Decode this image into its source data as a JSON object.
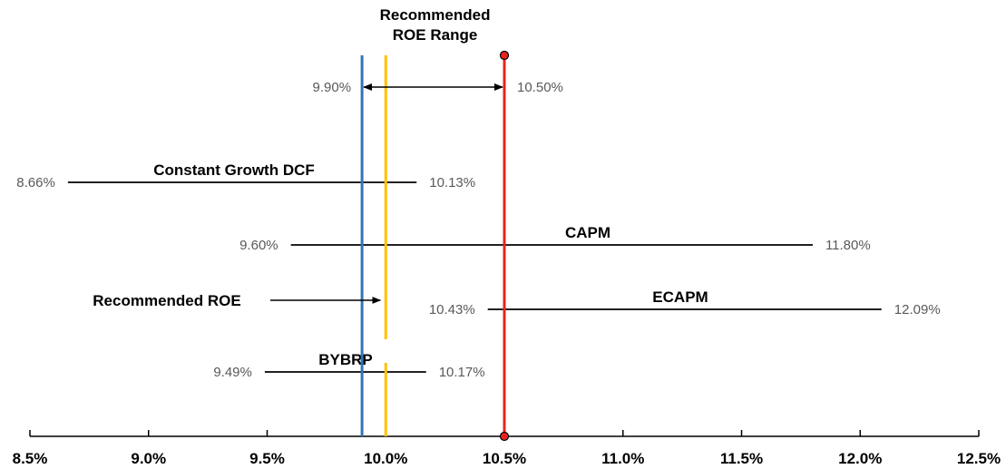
{
  "chart_data": {
    "type": "range",
    "title": "",
    "xlabel": "",
    "ylabel": "",
    "xlim": [
      8.5,
      12.5
    ],
    "x_ticks": [
      8.5,
      9.0,
      9.5,
      10.0,
      10.5,
      11.0,
      11.5,
      12.0,
      12.5
    ],
    "x_tick_labels": [
      "8.5%",
      "9.0%",
      "9.5%",
      "10.0%",
      "10.5%",
      "11.0%",
      "11.5%",
      "12.0%",
      "12.5%"
    ],
    "recommended_range": {
      "title_line1": "Recommended",
      "title_line2": "ROE Range",
      "low": 9.9,
      "high": 10.5,
      "low_label": "9.90%",
      "high_label": "10.50%",
      "low_color": "#2E75B6",
      "high_color": "#E8231E"
    },
    "recommended_roe": {
      "label": "Recommended ROE",
      "value": 10.0,
      "color": "#FFC000"
    },
    "series": [
      {
        "name": "Constant Growth DCF",
        "low": 8.66,
        "high": 10.13,
        "low_label": "8.66%",
        "high_label": "10.13%"
      },
      {
        "name": "CAPM",
        "low": 9.6,
        "high": 11.8,
        "low_label": "9.60%",
        "high_label": "11.80%"
      },
      {
        "name": "ECAPM",
        "low": 10.43,
        "high": 12.09,
        "low_label": "10.43%",
        "high_label": "12.09%"
      },
      {
        "name": "BYBRP",
        "low": 9.49,
        "high": 10.17,
        "low_label": "9.49%",
        "high_label": "10.17%"
      }
    ]
  }
}
